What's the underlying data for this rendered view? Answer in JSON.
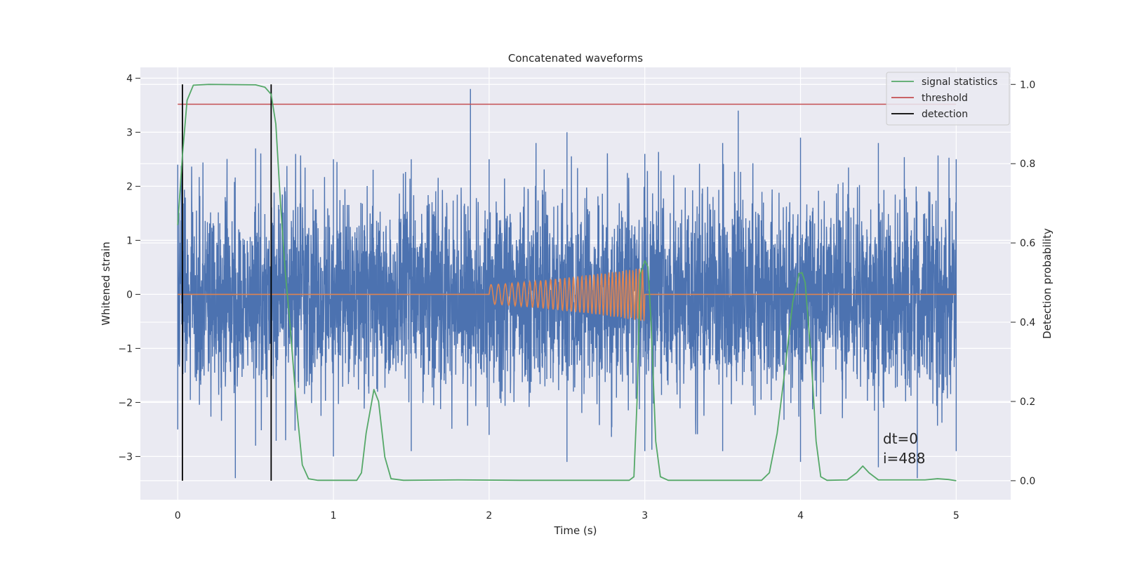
{
  "chart_data": {
    "type": "line",
    "title": "Concatenated waveforms",
    "xlabel": "Time (s)",
    "ylabel": "Whitened strain",
    "ylabel_right": "Detection probability",
    "xlim": [
      -0.24,
      5.35
    ],
    "ylim": [
      -3.8,
      4.2
    ],
    "ylim_right": [
      -0.048,
      1.043
    ],
    "x_ticks": [
      0,
      1,
      2,
      3,
      4,
      5
    ],
    "y_ticks": [
      -3,
      -2,
      -1,
      0,
      1,
      2,
      3,
      4
    ],
    "y_ticks_right": [
      0.0,
      0.2,
      0.4,
      0.6,
      0.8,
      1.0
    ],
    "x_tick_labels": [
      "0",
      "1",
      "2",
      "3",
      "4",
      "5"
    ],
    "y_tick_labels": [
      "−3",
      "−2",
      "−1",
      "0",
      "1",
      "2",
      "3",
      "4"
    ],
    "y_tick_labels_right": [
      "0.0",
      "0.2",
      "0.4",
      "0.6",
      "0.8",
      "1.0"
    ],
    "grid": true,
    "legend_position": "top-right",
    "colors": {
      "background": "#eaeaf2",
      "grid": "#ffffff",
      "strain": "#4c72b0",
      "injection": "#dd8452",
      "statistics": "#55a868",
      "threshold": "#c44e52",
      "detection": "#000000"
    },
    "series": [
      {
        "name": "",
        "axis": "left",
        "role": "whitened strain noise",
        "x_range": [
          0,
          5
        ],
        "envelope_upper": [
          [
            0.0,
            2.4
          ],
          [
            0.5,
            2.7
          ],
          [
            1.0,
            2.5
          ],
          [
            1.5,
            2.5
          ],
          [
            1.88,
            3.8
          ],
          [
            2.0,
            2.5
          ],
          [
            2.5,
            3.0
          ],
          [
            3.0,
            2.6
          ],
          [
            3.5,
            2.8
          ],
          [
            3.6,
            3.4
          ],
          [
            4.0,
            2.9
          ],
          [
            4.5,
            2.8
          ],
          [
            5.0,
            2.5
          ]
        ],
        "envelope_lower": [
          [
            0.0,
            -2.5
          ],
          [
            0.37,
            -3.4
          ],
          [
            0.5,
            -2.8
          ],
          [
            1.0,
            -3.0
          ],
          [
            1.5,
            -2.9
          ],
          [
            2.0,
            -2.6
          ],
          [
            2.5,
            -3.1
          ],
          [
            3.0,
            -2.9
          ],
          [
            3.5,
            -2.9
          ],
          [
            4.0,
            -3.1
          ],
          [
            4.5,
            -3.2
          ],
          [
            4.75,
            -3.4
          ],
          [
            5.0,
            -2.9
          ]
        ]
      },
      {
        "name": "",
        "axis": "left",
        "role": "injected chirp",
        "x_range": [
          0,
          5
        ],
        "chirp_start": 2.0,
        "chirp_end": 3.0,
        "amplitude_start": 0.18,
        "amplitude_end": 0.5
      },
      {
        "name": "signal statistics",
        "axis": "right",
        "points": [
          [
            0.0,
            0.645
          ],
          [
            0.03,
            0.82
          ],
          [
            0.06,
            0.96
          ],
          [
            0.1,
            0.998
          ],
          [
            0.2,
            1.0
          ],
          [
            0.5,
            0.999
          ],
          [
            0.56,
            0.993
          ],
          [
            0.6,
            0.975
          ],
          [
            0.63,
            0.9
          ],
          [
            0.66,
            0.7
          ],
          [
            0.69,
            0.53
          ],
          [
            0.72,
            0.4
          ],
          [
            0.76,
            0.2
          ],
          [
            0.8,
            0.04
          ],
          [
            0.84,
            0.005
          ],
          [
            0.9,
            0.001
          ],
          [
            1.15,
            0.001
          ],
          [
            1.18,
            0.02
          ],
          [
            1.21,
            0.12
          ],
          [
            1.26,
            0.23
          ],
          [
            1.29,
            0.2
          ],
          [
            1.33,
            0.06
          ],
          [
            1.37,
            0.005
          ],
          [
            1.45,
            0.001
          ],
          [
            1.8,
            0.002
          ],
          [
            2.2,
            0.001
          ],
          [
            2.9,
            0.001
          ],
          [
            2.93,
            0.01
          ],
          [
            2.95,
            0.2
          ],
          [
            2.97,
            0.52
          ],
          [
            3.0,
            0.555
          ],
          [
            3.02,
            0.54
          ],
          [
            3.04,
            0.4
          ],
          [
            3.07,
            0.1
          ],
          [
            3.1,
            0.01
          ],
          [
            3.15,
            0.001
          ],
          [
            3.75,
            0.001
          ],
          [
            3.8,
            0.02
          ],
          [
            3.85,
            0.12
          ],
          [
            3.9,
            0.28
          ],
          [
            3.95,
            0.45
          ],
          [
            3.99,
            0.523
          ],
          [
            4.01,
            0.525
          ],
          [
            4.03,
            0.5
          ],
          [
            4.07,
            0.3
          ],
          [
            4.1,
            0.1
          ],
          [
            4.13,
            0.01
          ],
          [
            4.17,
            0.001
          ],
          [
            4.3,
            0.002
          ],
          [
            4.36,
            0.02
          ],
          [
            4.4,
            0.037
          ],
          [
            4.44,
            0.02
          ],
          [
            4.5,
            0.002
          ],
          [
            4.8,
            0.002
          ],
          [
            4.88,
            0.005
          ],
          [
            4.95,
            0.003
          ],
          [
            5.0,
            0.0
          ]
        ]
      },
      {
        "name": "threshold",
        "axis": "right",
        "x": [
          0,
          5
        ],
        "value": 0.95
      },
      {
        "name": "detection",
        "axis": "right",
        "x_positions": [
          0.03,
          0.6
        ],
        "y_span": [
          0.0,
          1.0
        ]
      }
    ],
    "annotations": [
      "dt=0",
      "i=488"
    ]
  }
}
